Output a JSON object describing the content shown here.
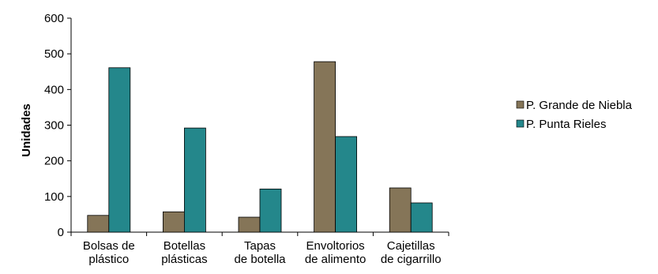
{
  "chart_data": {
    "type": "bar",
    "ylabel": "Unidades",
    "ylim": [
      0,
      600
    ],
    "yticks": [
      0,
      100,
      200,
      300,
      400,
      500,
      600
    ],
    "categories": [
      [
        "Bolsas de",
        "plástico"
      ],
      [
        "Botellas",
        "plásticas"
      ],
      [
        "Tapas",
        "de botella"
      ],
      [
        "Envoltorios",
        "de alimento"
      ],
      [
        "Cajetillas",
        "de cigarrillo"
      ]
    ],
    "series": [
      {
        "name": "P. Grande de Niebla",
        "color": "#857558",
        "values": [
          47,
          57,
          42,
          478,
          124
        ]
      },
      {
        "name": "P. Punta Rieles",
        "color": "#24878b",
        "values": [
          461,
          292,
          121,
          268,
          82
        ]
      }
    ],
    "legend_position": "right",
    "grid": false
  }
}
